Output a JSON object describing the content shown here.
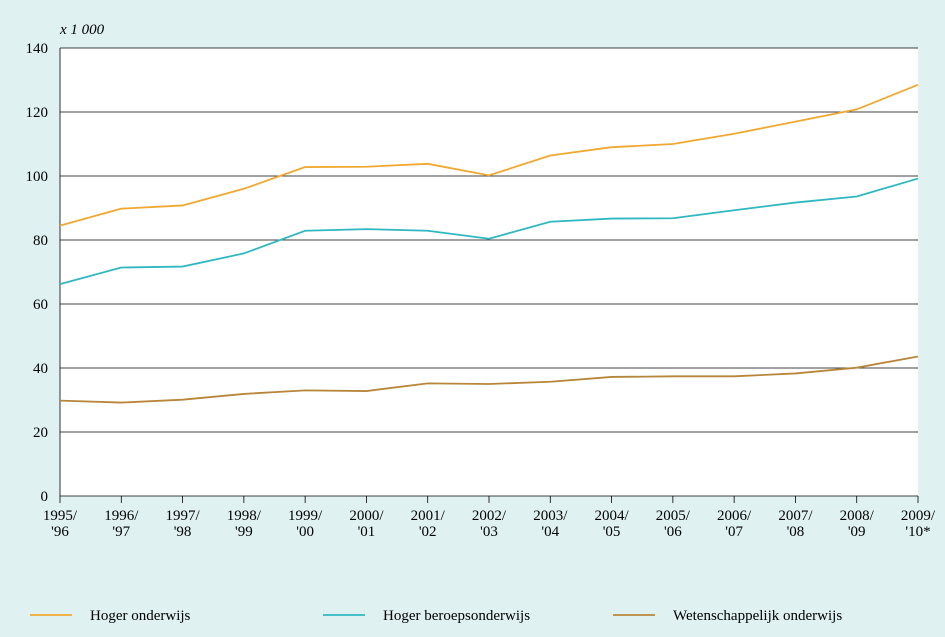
{
  "chart_data": {
    "type": "line",
    "y_label": "x 1 000",
    "categories": [
      "1995/\n'96",
      "1996/\n'97",
      "1997/\n'98",
      "1998/\n'99",
      "1999/\n'00",
      "2000/\n'01",
      "2001/\n'02",
      "2002/\n'03",
      "2003/\n'04",
      "2004/\n'05",
      "2005/\n'06",
      "2006/\n'07",
      "2007/\n'08",
      "2008/\n'09",
      "2009/\n'10*"
    ],
    "series": [
      {
        "name": "Hoger onderwijs",
        "color": "#f0a830",
        "values": [
          84.5,
          89.8,
          90.8,
          96,
          102.8,
          102.9,
          103.8,
          100.2,
          106.4,
          109,
          110,
          113.2,
          117,
          120.8,
          128.5
        ]
      },
      {
        "name": "Hoger beroepsonderwijs",
        "color": "#2fb8c2",
        "values": [
          66.2,
          71.4,
          71.7,
          75.8,
          82.9,
          83.4,
          82.9,
          80.4,
          85.7,
          86.7,
          86.8,
          89.3,
          91.7,
          93.6,
          99.2
        ]
      },
      {
        "name": "Wetenschappelijk onderwijs",
        "color": "#b8863a",
        "values": [
          29.8,
          29.2,
          30.1,
          31.9,
          33,
          32.8,
          35.2,
          35,
          35.7,
          37.2,
          37.4,
          37.4,
          38.3,
          40.1,
          43.6
        ]
      }
    ],
    "ylim": [
      0,
      140
    ],
    "yticks": [
      0,
      20,
      40,
      60,
      80,
      100,
      120,
      140
    ],
    "grid": true
  }
}
